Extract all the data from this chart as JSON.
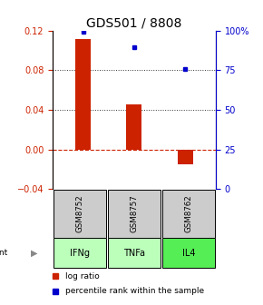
{
  "title": "GDS501 / 8808",
  "samples": [
    "GSM8752",
    "GSM8757",
    "GSM8762"
  ],
  "agents": [
    "IFNg",
    "TNFa",
    "IL4"
  ],
  "log_ratios": [
    0.111,
    0.045,
    -0.015
  ],
  "percentile_ranks": [
    0.99,
    0.895,
    0.755
  ],
  "left_ylim": [
    -0.04,
    0.12
  ],
  "right_ylim": [
    0.0,
    1.0
  ],
  "left_yticks": [
    -0.04,
    0.0,
    0.04,
    0.08,
    0.12
  ],
  "right_yticks": [
    0.0,
    0.25,
    0.5,
    0.75,
    1.0
  ],
  "right_yticklabels": [
    "0",
    "25",
    "50",
    "75",
    "100%"
  ],
  "bar_color": "#cc2200",
  "dot_color": "#0000cc",
  "zero_line_color": "#cc2200",
  "dotted_line_color": "#333333",
  "sample_box_color": "#cccccc",
  "agent_colors": [
    "#bbffbb",
    "#bbffbb",
    "#55ee55"
  ],
  "title_fontsize": 10,
  "tick_fontsize": 7,
  "legend_fontsize": 6.5,
  "bar_width": 0.3
}
